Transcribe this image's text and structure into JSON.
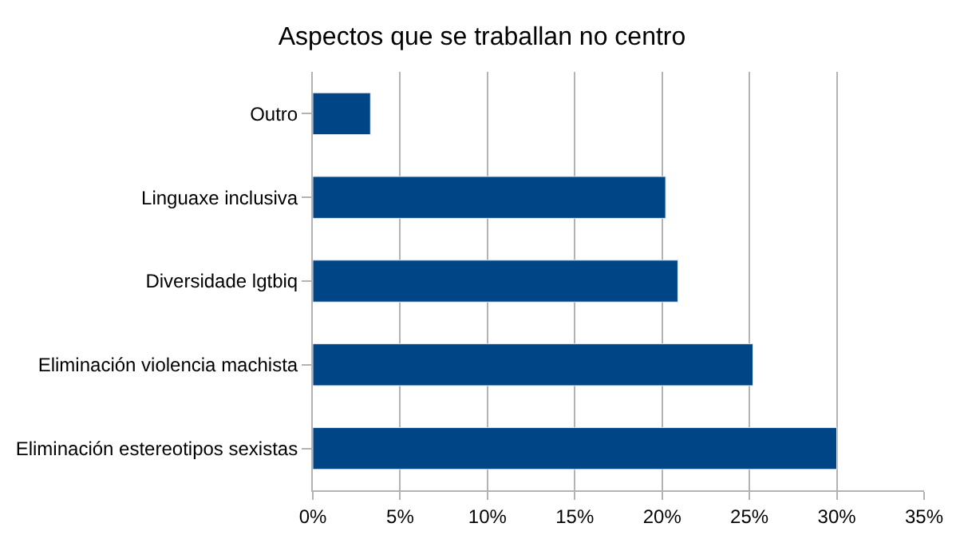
{
  "chart_data": {
    "type": "bar",
    "orientation": "horizontal",
    "title": "Aspectos que se traballan no centro",
    "categories": [
      "Outro",
      "Linguaxe inclusiva",
      "Diversidade lgtbiq",
      "Eliminación violencia machista",
      "Eliminación estereotipos sexistas"
    ],
    "values": [
      3.3,
      20.2,
      20.9,
      25.2,
      30.0
    ],
    "color": "#004586",
    "xlim": [
      0,
      35
    ],
    "xticks": [
      {
        "value": 0,
        "label": "0%"
      },
      {
        "value": 5,
        "label": "5%"
      },
      {
        "value": 10,
        "label": "10%"
      },
      {
        "value": 15,
        "label": "15%"
      },
      {
        "value": 20,
        "label": "20%"
      },
      {
        "value": 25,
        "label": "25%"
      },
      {
        "value": 30,
        "label": "30%"
      },
      {
        "value": 35,
        "label": "35%"
      }
    ],
    "grid": "x",
    "legend": false
  }
}
